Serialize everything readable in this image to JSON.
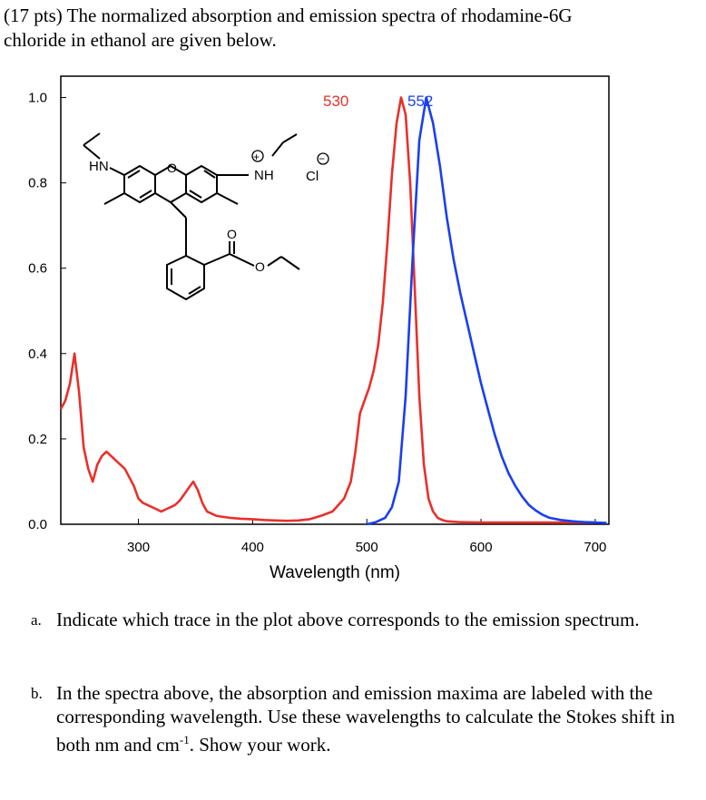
{
  "problem": {
    "header_line1": "(17 pts) The normalized absorption and emission spectra of rhodamine-6G",
    "header_line2": "chloride in ethanol are given below."
  },
  "chart_data": {
    "type": "line",
    "xlabel": "Wavelength (nm)",
    "ylabel": "",
    "xlim": [
      232,
      712
    ],
    "ylim": [
      0,
      1.05
    ],
    "x_ticks": [
      300,
      400,
      500,
      600,
      700
    ],
    "y_ticks": [
      "0.0",
      "0.2",
      "0.4",
      "0.6",
      "0.8",
      "1.0"
    ],
    "grid": false,
    "annotations": [
      {
        "text": "530",
        "color": "#e8302c"
      },
      {
        "text": "552",
        "color": "#1a3ff0"
      }
    ],
    "series": [
      {
        "color": "#e8302c",
        "x": [
          232,
          236,
          240,
          244,
          248,
          252,
          256,
          260,
          264,
          268,
          272,
          276,
          280,
          284,
          288,
          292,
          296,
          300,
          304,
          308,
          312,
          316,
          320,
          324,
          328,
          332,
          336,
          340,
          344,
          348,
          352,
          356,
          360,
          364,
          368,
          372,
          380,
          390,
          400,
          410,
          420,
          430,
          440,
          450,
          460,
          470,
          480,
          486,
          490,
          494,
          498,
          502,
          506,
          510,
          514,
          518,
          522,
          526,
          530,
          534,
          538,
          542,
          546,
          550,
          554,
          558,
          562,
          566,
          570,
          580,
          600,
          620,
          640,
          660,
          680,
          700
        ],
        "y": [
          0.27,
          0.29,
          0.33,
          0.4,
          0.31,
          0.18,
          0.13,
          0.1,
          0.14,
          0.16,
          0.17,
          0.16,
          0.15,
          0.14,
          0.13,
          0.11,
          0.09,
          0.06,
          0.05,
          0.045,
          0.04,
          0.035,
          0.03,
          0.035,
          0.04,
          0.045,
          0.055,
          0.07,
          0.085,
          0.1,
          0.08,
          0.05,
          0.03,
          0.025,
          0.02,
          0.018,
          0.015,
          0.013,
          0.012,
          0.01,
          0.009,
          0.008,
          0.009,
          0.012,
          0.02,
          0.03,
          0.06,
          0.1,
          0.17,
          0.26,
          0.29,
          0.32,
          0.36,
          0.42,
          0.52,
          0.66,
          0.82,
          0.94,
          1.0,
          0.96,
          0.8,
          0.55,
          0.3,
          0.14,
          0.06,
          0.03,
          0.015,
          0.01,
          0.007,
          0.005,
          0.004,
          0.004,
          0.004,
          0.004,
          0.004,
          0.004
        ]
      },
      {
        "color": "#1a3ff0",
        "x": [
          500,
          508,
          516,
          522,
          528,
          534,
          540,
          546,
          552,
          558,
          564,
          570,
          576,
          582,
          588,
          594,
          600,
          606,
          612,
          618,
          624,
          630,
          636,
          642,
          648,
          654,
          660,
          670,
          680,
          690,
          700,
          710
        ],
        "y": [
          0.0,
          0.005,
          0.015,
          0.04,
          0.1,
          0.3,
          0.62,
          0.9,
          1.0,
          0.94,
          0.84,
          0.72,
          0.62,
          0.54,
          0.47,
          0.4,
          0.33,
          0.27,
          0.21,
          0.16,
          0.12,
          0.09,
          0.065,
          0.045,
          0.032,
          0.022,
          0.015,
          0.01,
          0.007,
          0.005,
          0.004,
          0.003
        ]
      }
    ]
  },
  "structure": {
    "label_hn": "HN",
    "label_nh": "NH",
    "label_cl": "Cl",
    "label_o": "O",
    "charge_plus": "+",
    "charge_minus": "−"
  },
  "questions": [
    {
      "label": "a.",
      "text": "Indicate which trace in the plot above corresponds to the emission spectrum."
    },
    {
      "label": "b.",
      "text_before": "In the spectra above, the absorption and emission maxima are labeled with the corresponding wavelength. Use these wavelengths to calculate the Stokes shift in both nm and cm",
      "superscript": "-1",
      "text_after": ". Show your work."
    }
  ]
}
